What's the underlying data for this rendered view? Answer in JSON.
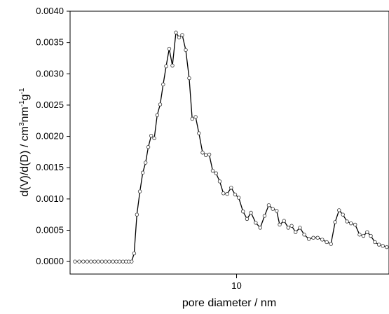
{
  "chart_data": {
    "type": "line",
    "title": "",
    "xlabel": "pore diameter / nm",
    "ylabel_parts": [
      "d(V)/d(D) / cm",
      "3",
      "nm",
      "-1",
      "g",
      "-1"
    ],
    "x_scale": "log",
    "xlim": [
      2.2,
      40
    ],
    "ylim": [
      -0.0002,
      0.004
    ],
    "x_ticks": [
      {
        "value": 10,
        "label": "10"
      }
    ],
    "y_ticks": [
      {
        "value": 0.0,
        "label": "0.0000"
      },
      {
        "value": 0.0005,
        "label": "0.0005"
      },
      {
        "value": 0.001,
        "label": "0.0010"
      },
      {
        "value": 0.0015,
        "label": "0.0015"
      },
      {
        "value": 0.002,
        "label": "0.0020"
      },
      {
        "value": 0.0025,
        "label": "0.0025"
      },
      {
        "value": 0.003,
        "label": "0.0030"
      },
      {
        "value": 0.0035,
        "label": "0.0035"
      },
      {
        "value": 0.004,
        "label": "0.0040"
      }
    ],
    "grid": false,
    "line_color": "#000000",
    "marker": "open-circle",
    "series": [
      {
        "points": [
          [
            2.3,
            0.0
          ],
          [
            2.39,
            0.0
          ],
          [
            2.48,
            0.0
          ],
          [
            2.57,
            0.0
          ],
          [
            2.66,
            0.0
          ],
          [
            2.75,
            0.0
          ],
          [
            2.84,
            0.0
          ],
          [
            2.94,
            0.0
          ],
          [
            3.04,
            0.0
          ],
          [
            3.14,
            0.0
          ],
          [
            3.25,
            0.0
          ],
          [
            3.35,
            0.0
          ],
          [
            3.45,
            0.0
          ],
          [
            3.56,
            0.0
          ],
          [
            3.66,
            0.0
          ],
          [
            3.75,
            0.0
          ],
          [
            3.85,
            0.0
          ],
          [
            3.94,
            0.00013
          ],
          [
            4.04,
            0.00075
          ],
          [
            4.15,
            0.00112
          ],
          [
            4.26,
            0.00142
          ],
          [
            4.37,
            0.00158
          ],
          [
            4.48,
            0.00183
          ],
          [
            4.6,
            0.00201
          ],
          [
            4.73,
            0.00197
          ],
          [
            4.86,
            0.00234
          ],
          [
            4.99,
            0.00251
          ],
          [
            5.13,
            0.00283
          ],
          [
            5.27,
            0.00312
          ],
          [
            5.42,
            0.0034
          ],
          [
            5.58,
            0.00313
          ],
          [
            5.76,
            0.00366
          ],
          [
            5.93,
            0.00358
          ],
          [
            6.1,
            0.00362
          ],
          [
            6.3,
            0.00338
          ],
          [
            6.5,
            0.00293
          ],
          [
            6.68,
            0.00228
          ],
          [
            6.89,
            0.00231
          ],
          [
            7.1,
            0.00205
          ],
          [
            7.34,
            0.00174
          ],
          [
            7.56,
            0.0017
          ],
          [
            7.8,
            0.00171
          ],
          [
            8.05,
            0.00145
          ],
          [
            8.3,
            0.00141
          ],
          [
            8.58,
            0.00128
          ],
          [
            8.87,
            0.00109
          ],
          [
            9.18,
            0.00108
          ],
          [
            9.52,
            0.00118
          ],
          [
            9.87,
            0.00107
          ],
          [
            10.2,
            0.00102
          ],
          [
            10.6,
            0.0008
          ],
          [
            11.0,
            0.00068
          ],
          [
            11.4,
            0.00078
          ],
          [
            11.9,
            0.00062
          ],
          [
            12.4,
            0.00054
          ],
          [
            12.9,
            0.00073
          ],
          [
            13.4,
            0.0009
          ],
          [
            13.9,
            0.00084
          ],
          [
            14.4,
            0.00081
          ],
          [
            14.8,
            0.00059
          ],
          [
            15.4,
            0.00065
          ],
          [
            16.0,
            0.00054
          ],
          [
            16.5,
            0.00057
          ],
          [
            17.1,
            0.00047
          ],
          [
            17.8,
            0.00054
          ],
          [
            18.5,
            0.00043
          ],
          [
            19.3,
            0.00036
          ],
          [
            20.1,
            0.00038
          ],
          [
            20.9,
            0.00038
          ],
          [
            21.8,
            0.00035
          ],
          [
            22.7,
            0.00031
          ],
          [
            23.6,
            0.00028
          ],
          [
            24.5,
            0.00063
          ],
          [
            25.4,
            0.00082
          ],
          [
            26.3,
            0.00075
          ],
          [
            27.3,
            0.00064
          ],
          [
            28.3,
            0.00061
          ],
          [
            29.4,
            0.00059
          ],
          [
            30.6,
            0.00043
          ],
          [
            31.7,
            0.00041
          ],
          [
            32.8,
            0.00047
          ],
          [
            33.9,
            0.00041
          ],
          [
            35.2,
            0.00031
          ],
          [
            36.5,
            0.00027
          ],
          [
            37.8,
            0.00025
          ],
          [
            39.2,
            0.00023
          ]
        ]
      }
    ]
  }
}
